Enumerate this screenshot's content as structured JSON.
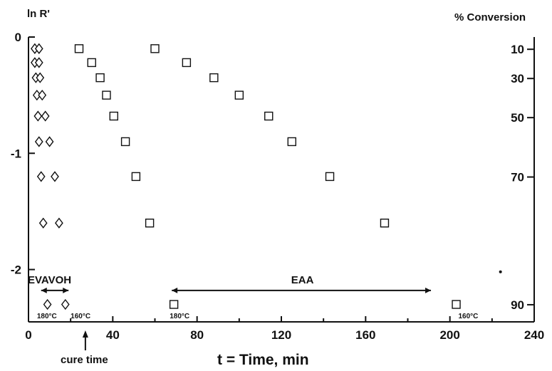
{
  "chart_data": {
    "type": "scatter",
    "title": "",
    "xlabel": "t = Time, min",
    "ylabel": "ln R'",
    "y2label": "% Conversion",
    "xlim": [
      0,
      240
    ],
    "ylim": [
      -2.45,
      0
    ],
    "x_ticks": [
      "0",
      "40",
      "80",
      "120",
      "160",
      "200",
      "240"
    ],
    "y_ticks": [
      "0",
      "-1",
      "-2"
    ],
    "y2_ticks": [
      "10",
      "30",
      "50",
      "70",
      "90"
    ],
    "series": [
      {
        "marker": "diamond",
        "points": [
          {
            "x": 3,
            "y": -0.1
          },
          {
            "x": 5,
            "y": -0.1
          },
          {
            "x": 3,
            "y": -0.22
          },
          {
            "x": 5,
            "y": -0.22
          },
          {
            "x": 3.5,
            "y": -0.35
          },
          {
            "x": 5.5,
            "y": -0.35
          },
          {
            "x": 4,
            "y": -0.5
          },
          {
            "x": 6.5,
            "y": -0.5
          },
          {
            "x": 4.5,
            "y": -0.68
          },
          {
            "x": 8,
            "y": -0.68
          },
          {
            "x": 5,
            "y": -0.9
          },
          {
            "x": 10,
            "y": -0.9
          },
          {
            "x": 6,
            "y": -1.2
          },
          {
            "x": 12.5,
            "y": -1.2
          },
          {
            "x": 7,
            "y": -1.6
          },
          {
            "x": 14.5,
            "y": -1.6
          },
          {
            "x": 9,
            "y": -2.3
          },
          {
            "x": 17.5,
            "y": -2.3
          }
        ]
      },
      {
        "marker": "square",
        "points": [
          {
            "x": 24,
            "y": -0.1
          },
          {
            "x": 30,
            "y": -0.22
          },
          {
            "x": 34,
            "y": -0.35
          },
          {
            "x": 37,
            "y": -0.5
          },
          {
            "x": 40.5,
            "y": -0.68
          },
          {
            "x": 46,
            "y": -0.9
          },
          {
            "x": 51,
            "y": -1.2
          },
          {
            "x": 57.5,
            "y": -1.6
          },
          {
            "x": 69,
            "y": -2.3
          },
          {
            "x": 60,
            "y": -0.1
          },
          {
            "x": 75,
            "y": -0.22
          },
          {
            "x": 88,
            "y": -0.35
          },
          {
            "x": 100,
            "y": -0.5
          },
          {
            "x": 114,
            "y": -0.68
          },
          {
            "x": 125,
            "y": -0.9
          },
          {
            "x": 143,
            "y": -1.2
          },
          {
            "x": 169,
            "y": -1.6
          },
          {
            "x": 203,
            "y": -2.3
          }
        ]
      },
      {
        "marker": "dot",
        "points": [
          {
            "x": 224,
            "y": -2.02
          }
        ]
      }
    ],
    "annotations": [
      {
        "text": "EVAVOH",
        "x": 10,
        "y": -2.12,
        "arrow_x": [
          6,
          19
        ],
        "arrow_y": -2.18
      },
      {
        "text": "EAA",
        "x": 130,
        "y": -2.12,
        "arrow_x": [
          68,
          191
        ],
        "arrow_y": -2.18
      },
      {
        "text": "180°C",
        "x": 4,
        "y": -2.42
      },
      {
        "text": "160°C",
        "x": 20,
        "y": -2.42
      },
      {
        "text": "180°C",
        "x": 67,
        "y": -2.42
      },
      {
        "text": "160°C",
        "x": 204,
        "y": -2.42
      }
    ],
    "cure_marker": {
      "text": "cure time",
      "x": 27
    },
    "grid": false,
    "legend": "none"
  }
}
